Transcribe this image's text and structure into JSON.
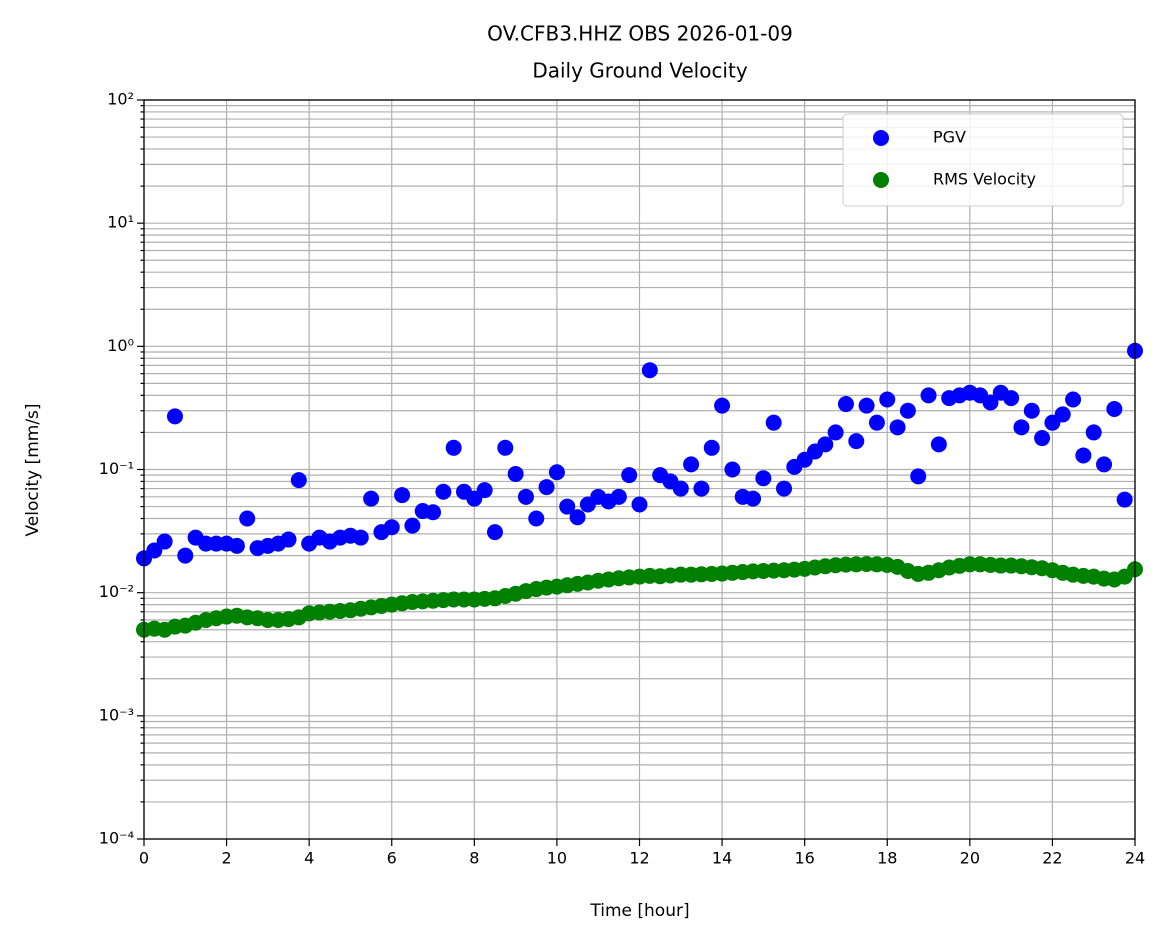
{
  "chart_data": {
    "type": "scatter",
    "title": "OV.CFB3.HHZ OBS 2026-01-09",
    "subtitle": "Daily Ground Velocity",
    "xlabel": "Time [hour]",
    "ylabel": "Velocity [mm/s]",
    "xlim": [
      0,
      24
    ],
    "xticks": [
      0,
      2,
      4,
      6,
      8,
      10,
      12,
      14,
      16,
      18,
      20,
      22,
      24
    ],
    "ylim": [
      0.0001,
      100
    ],
    "yscale": "log",
    "yticks": [
      {
        "value": 0.0001,
        "label": "10⁻⁴"
      },
      {
        "value": 0.001,
        "label": "10⁻³"
      },
      {
        "value": 0.01,
        "label": "10⁻²"
      },
      {
        "value": 0.1,
        "label": "10⁻¹"
      },
      {
        "value": 1,
        "label": "10⁰"
      },
      {
        "value": 10,
        "label": "10¹"
      },
      {
        "value": 100,
        "label": "10²"
      }
    ],
    "grid": true,
    "minor_grid": true,
    "legend": "upper right",
    "x": [
      0,
      0.25,
      0.5,
      0.75,
      1,
      1.25,
      1.5,
      1.75,
      2,
      2.25,
      2.5,
      2.75,
      3,
      3.25,
      3.5,
      3.75,
      4,
      4.25,
      4.5,
      4.75,
      5,
      5.25,
      5.5,
      5.75,
      6,
      6.25,
      6.5,
      6.75,
      7,
      7.25,
      7.5,
      7.75,
      8,
      8.25,
      8.5,
      8.75,
      9,
      9.25,
      9.5,
      9.75,
      10,
      10.25,
      10.5,
      10.75,
      11,
      11.25,
      11.5,
      11.75,
      12,
      12.25,
      12.5,
      12.75,
      13,
      13.25,
      13.5,
      13.75,
      14,
      14.25,
      14.5,
      14.75,
      15,
      15.25,
      15.5,
      15.75,
      16,
      16.25,
      16.5,
      16.75,
      17,
      17.25,
      17.5,
      17.75,
      18,
      18.25,
      18.5,
      18.75,
      19,
      19.25,
      19.5,
      19.75,
      20,
      20.25,
      20.5,
      20.75,
      21,
      21.25,
      21.5,
      21.75,
      22,
      22.25,
      22.5,
      22.75,
      23,
      23.25,
      23.5,
      23.75,
      24
    ],
    "series": [
      {
        "name": "PGV",
        "color": "#0000ff",
        "values": [
          0.019,
          0.022,
          0.026,
          0.27,
          0.02,
          0.028,
          0.025,
          0.025,
          0.025,
          0.024,
          0.04,
          0.023,
          0.024,
          0.025,
          0.027,
          0.082,
          0.025,
          0.028,
          0.026,
          0.028,
          0.029,
          0.028,
          0.058,
          0.031,
          0.034,
          0.062,
          0.035,
          0.046,
          0.045,
          0.066,
          0.15,
          0.066,
          0.058,
          0.068,
          0.031,
          0.15,
          0.092,
          0.06,
          0.04,
          0.072,
          0.095,
          0.05,
          0.041,
          0.052,
          0.06,
          0.055,
          0.06,
          0.09,
          0.052,
          0.64,
          0.09,
          0.08,
          0.07,
          0.11,
          0.07,
          0.15,
          0.33,
          0.1,
          0.06,
          0.058,
          0.085,
          0.24,
          0.07,
          0.105,
          0.12,
          0.14,
          0.16,
          0.2,
          0.34,
          0.17,
          0.33,
          0.24,
          0.37,
          0.22,
          0.3,
          0.088,
          0.4,
          0.16,
          0.38,
          0.4,
          0.42,
          0.4,
          0.35,
          0.42,
          0.38,
          0.22,
          0.3,
          0.18,
          0.24,
          0.28,
          0.37,
          0.13,
          0.2,
          0.11,
          0.31,
          0.057,
          0.92
        ]
      },
      {
        "name": "RMS Velocity",
        "color": "#008000",
        "values": [
          0.005,
          0.0051,
          0.005,
          0.0053,
          0.0054,
          0.0057,
          0.006,
          0.0062,
          0.0064,
          0.0065,
          0.0063,
          0.0062,
          0.006,
          0.006,
          0.0061,
          0.0063,
          0.0068,
          0.0069,
          0.007,
          0.0071,
          0.0072,
          0.0074,
          0.0076,
          0.0078,
          0.008,
          0.0082,
          0.0084,
          0.0085,
          0.0086,
          0.0087,
          0.0088,
          0.0088,
          0.0088,
          0.0089,
          0.009,
          0.0094,
          0.0098,
          0.0103,
          0.0107,
          0.011,
          0.0112,
          0.0115,
          0.0118,
          0.0121,
          0.0125,
          0.0128,
          0.0131,
          0.0133,
          0.0135,
          0.0137,
          0.0136,
          0.0138,
          0.014,
          0.014,
          0.0141,
          0.0142,
          0.0143,
          0.0145,
          0.0147,
          0.0149,
          0.015,
          0.0151,
          0.0152,
          0.0154,
          0.0156,
          0.016,
          0.0164,
          0.0167,
          0.0169,
          0.017,
          0.0171,
          0.017,
          0.0168,
          0.0162,
          0.015,
          0.0142,
          0.0145,
          0.0152,
          0.016,
          0.0165,
          0.017,
          0.017,
          0.0168,
          0.0166,
          0.0166,
          0.0164,
          0.0161,
          0.0158,
          0.0152,
          0.0145,
          0.014,
          0.0137,
          0.0135,
          0.013,
          0.0128,
          0.0135,
          0.0155
        ]
      }
    ]
  }
}
